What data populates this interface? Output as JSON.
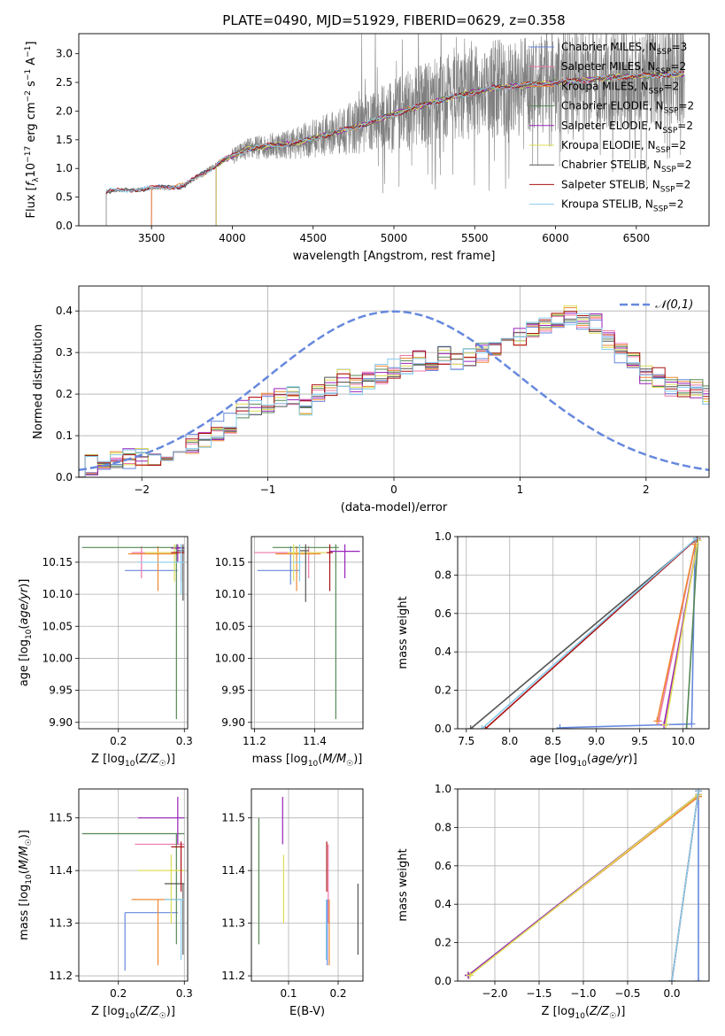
{
  "figure_title": "PLATE=0490, MJD=51929, FIBERID=0629, z=0.358",
  "chart_data": [
    {
      "id": "spectrum",
      "type": "line",
      "title": "PLATE=0490, MJD=51929, FIBERID=0629, z=0.358",
      "xlabel": "wavelength [Angstrom, rest frame]",
      "ylabel": "Flux [f_λ 10^-17 erg cm^-2 s^-1 A^-1]",
      "xlim": [
        3050,
        6950
      ],
      "ylim": [
        0,
        3.35
      ],
      "xticks": [
        3500,
        4000,
        4500,
        5000,
        5500,
        6000,
        6500
      ],
      "yticks": [
        0.0,
        0.5,
        1.0,
        1.5,
        2.0,
        2.5,
        3.0
      ],
      "grid": false,
      "legend_position": "top-right",
      "observed": {
        "color": "#808080",
        "x_start": 3220,
        "x_end": 6800,
        "anchors": [
          [
            3220,
            0.6
          ],
          [
            3500,
            0.65
          ],
          [
            3700,
            0.7
          ],
          [
            3950,
            1.15
          ],
          [
            4100,
            1.35
          ],
          [
            4400,
            1.45
          ],
          [
            4600,
            1.6
          ],
          [
            4800,
            1.75
          ],
          [
            5000,
            1.95
          ],
          [
            5300,
            2.2
          ],
          [
            5600,
            2.4
          ],
          [
            6000,
            2.5
          ],
          [
            6400,
            2.6
          ],
          [
            6800,
            2.65
          ]
        ]
      },
      "series": [
        {
          "name": "Chabrier MILES, N_SSP=3",
          "color": "#6688dd",
          "x_start": 3500
        },
        {
          "name": "Salpeter MILES, N_SSP=2",
          "color": "#ee77aa",
          "x_start": 3500
        },
        {
          "name": "Kroupa MILES, N_SSP=2",
          "color": "#ee8833",
          "x_start": 3500
        },
        {
          "name": "Chabrier ELODIE, N_SSP=2",
          "color": "#558855",
          "x_start": 3900
        },
        {
          "name": "Salpeter ELODIE, N_SSP=2",
          "color": "#9922bb",
          "x_start": 3900
        },
        {
          "name": "Kroupa ELODIE, N_SSP=2",
          "color": "#dddd55",
          "x_start": 3900
        },
        {
          "name": "Chabrier STELIB, N_SSP=2",
          "color": "#555555",
          "x_start": 3220
        },
        {
          "name": "Salpeter STELIB, N_SSP=2",
          "color": "#aa1111",
          "x_start": 3220
        },
        {
          "name": "Kroupa STELIB, N_SSP=2",
          "color": "#88ccee",
          "x_start": 3220
        }
      ]
    },
    {
      "id": "residuals",
      "type": "line",
      "xlabel": "(data-model)/error",
      "ylabel": "Normed distribution",
      "xlim": [
        -2.5,
        2.5
      ],
      "ylim": [
        0,
        0.46
      ],
      "xticks": [
        -2,
        -1,
        0,
        1,
        2
      ],
      "yticks": [
        0.0,
        0.1,
        0.2,
        0.3,
        0.4
      ],
      "grid": true,
      "legend_position": "top-right",
      "legend": "𝒩(0,1)",
      "normal_curve_color": "#6688dd",
      "bin_width": 0.1,
      "base_hist": [
        0.025,
        0.03,
        0.035,
        0.04,
        0.045,
        0.05,
        0.05,
        0.06,
        0.07,
        0.08,
        0.09,
        0.11,
        0.13,
        0.16,
        0.17,
        0.18,
        0.19,
        0.2,
        0.17,
        0.2,
        0.22,
        0.24,
        0.22,
        0.23,
        0.25,
        0.26,
        0.27,
        0.28,
        0.28,
        0.29,
        0.28,
        0.29,
        0.3,
        0.31,
        0.32,
        0.34,
        0.35,
        0.36,
        0.37,
        0.39,
        0.38,
        0.37,
        0.33,
        0.3,
        0.28,
        0.25,
        0.24,
        0.22,
        0.21,
        0.21,
        0.2,
        0.19,
        0.18,
        0.17,
        0.16,
        0.15,
        0.14,
        0.13,
        0.12,
        0.11,
        0.1,
        0.1,
        0.09,
        0.085,
        0.08,
        0.08,
        0.07
      ]
    },
    {
      "id": "age_vs_Z",
      "type": "scatter",
      "xlabel": "Z [log10(Z/Z☉)]",
      "ylabel": "age  [log10(age/yr)]",
      "xlim": [
        0.14,
        0.305
      ],
      "ylim": [
        9.89,
        10.19
      ],
      "xticks": [
        0.2,
        0.3
      ],
      "yticks": [
        9.9,
        9.95,
        10.0,
        10.05,
        10.1,
        10.15
      ],
      "grid": true,
      "points": [
        {
          "color": "#6688dd",
          "x": 0.21,
          "xerr": [
            0.21,
            0.29
          ],
          "y": 10.137,
          "yerr": [
            10.137,
            10.137
          ]
        },
        {
          "color": "#ee77aa",
          "x": 0.235,
          "xerr": [
            0.22,
            0.29
          ],
          "y": 10.165,
          "yerr": [
            10.125,
            10.175
          ]
        },
        {
          "color": "#ee8833",
          "x": 0.26,
          "xerr": [
            0.215,
            0.29
          ],
          "y": 10.163,
          "yerr": [
            10.105,
            10.175
          ]
        },
        {
          "color": "#558855",
          "x": 0.288,
          "xerr": [
            0.145,
            0.3
          ],
          "y": 10.173,
          "yerr": [
            9.905,
            10.178
          ]
        },
        {
          "color": "#9922bb",
          "x": 0.29,
          "xerr": [
            0.28,
            0.3
          ],
          "y": 10.172,
          "yerr": [
            10.15,
            10.178
          ]
        },
        {
          "color": "#dddd55",
          "x": 0.285,
          "xerr": [
            0.24,
            0.3
          ],
          "y": 10.165,
          "yerr": [
            10.12,
            10.178
          ]
        },
        {
          "color": "#555555",
          "x": 0.298,
          "xerr": [
            0.29,
            0.3
          ],
          "y": 10.168,
          "yerr": [
            10.09,
            10.178
          ]
        },
        {
          "color": "#aa1111",
          "x": 0.295,
          "xerr": [
            0.28,
            0.3
          ],
          "y": 10.165,
          "yerr": [
            10.12,
            10.178
          ]
        },
        {
          "color": "#88ccee",
          "x": 0.295,
          "xerr": [
            0.23,
            0.3
          ],
          "y": 10.15,
          "yerr": [
            10.1,
            10.178
          ]
        }
      ]
    },
    {
      "id": "age_vs_mass",
      "type": "scatter",
      "xlabel": "mass [log10(M/M☉)]",
      "ylabel": "",
      "xlim": [
        11.19,
        11.56
      ],
      "ylim": [
        9.89,
        10.19
      ],
      "xticks": [
        11.2,
        11.4
      ],
      "yticks": [
        9.9,
        9.95,
        10.0,
        10.05,
        10.1,
        10.15
      ],
      "grid": true,
      "points": [
        {
          "color": "#6688dd",
          "x": 11.32,
          "xerr": [
            11.21,
            11.35
          ],
          "y": 10.137,
          "yerr": [
            10.115,
            10.175
          ]
        },
        {
          "color": "#ee77aa",
          "x": 11.38,
          "xerr": [
            11.2,
            11.45
          ],
          "y": 10.165,
          "yerr": [
            10.125,
            10.175
          ]
        },
        {
          "color": "#ee8833",
          "x": 11.34,
          "xerr": [
            11.27,
            11.42
          ],
          "y": 10.163,
          "yerr": [
            10.105,
            10.175
          ]
        },
        {
          "color": "#558855",
          "x": 11.47,
          "xerr": [
            11.26,
            11.48
          ],
          "y": 10.173,
          "yerr": [
            9.905,
            10.178
          ]
        },
        {
          "color": "#9922bb",
          "x": 11.5,
          "xerr": [
            11.45,
            11.55
          ],
          "y": 10.167,
          "yerr": [
            10.125,
            10.178
          ]
        },
        {
          "color": "#dddd55",
          "x": 11.33,
          "xerr": [
            11.31,
            11.44
          ],
          "y": 10.165,
          "yerr": [
            10.12,
            10.178
          ]
        },
        {
          "color": "#555555",
          "x": 11.37,
          "xerr": [
            11.35,
            11.38
          ],
          "y": 10.168,
          "yerr": [
            10.088,
            10.178
          ]
        },
        {
          "color": "#aa1111",
          "x": 11.45,
          "xerr": [
            11.44,
            11.46
          ],
          "y": 10.165,
          "yerr": [
            10.105,
            10.178
          ]
        },
        {
          "color": "#88ccee",
          "x": 11.35,
          "xerr": [
            11.33,
            11.36
          ],
          "y": 10.15,
          "yerr": [
            10.12,
            10.178
          ]
        }
      ]
    },
    {
      "id": "massweight_vs_age",
      "type": "line",
      "xlabel": "age  [log10(age/yr)]",
      "ylabel": "mass weight",
      "xlim": [
        7.4,
        10.3
      ],
      "ylim": [
        0,
        1
      ],
      "xticks": [
        7.5,
        8.0,
        8.5,
        9.0,
        9.5,
        10.0
      ],
      "yticks": [
        0.0,
        0.2,
        0.4,
        0.6,
        0.8,
        1.0
      ],
      "grid": true,
      "series": [
        {
          "name": "Chabrier MILES",
          "color": "#6688dd",
          "x": [
            8.58,
            10.1,
            10.14
          ],
          "y": [
            0.005,
            0.025,
            0.97
          ]
        },
        {
          "name": "Salpeter MILES",
          "color": "#ee77aa",
          "x": [
            9.72,
            10.14
          ],
          "y": [
            0.04,
            0.96
          ]
        },
        {
          "name": "Kroupa MILES",
          "color": "#ee8833",
          "x": [
            9.7,
            10.14
          ],
          "y": [
            0.04,
            0.96
          ]
        },
        {
          "name": "Chabrier ELODIE",
          "color": "#558855",
          "x": [
            10.04,
            10.17
          ],
          "y": [
            0.0,
            0.98
          ]
        },
        {
          "name": "Salpeter ELODIE",
          "color": "#9922bb",
          "x": [
            9.78,
            10.17
          ],
          "y": [
            0.02,
            0.98
          ]
        },
        {
          "name": "Kroupa ELODIE",
          "color": "#dddd55",
          "x": [
            9.8,
            10.17
          ],
          "y": [
            0.02,
            0.98
          ]
        },
        {
          "name": "Chabrier STELIB",
          "color": "#555555",
          "x": [
            7.55,
            10.16
          ],
          "y": [
            0.0,
            0.99
          ]
        },
        {
          "name": "Salpeter STELIB",
          "color": "#aa1111",
          "x": [
            7.72,
            10.16
          ],
          "y": [
            0.0,
            0.99
          ]
        },
        {
          "name": "Kroupa STELIB",
          "color": "#88ccee",
          "x": [
            7.68,
            10.15
          ],
          "y": [
            0.0,
            0.99
          ]
        }
      ]
    },
    {
      "id": "mass_vs_Z",
      "type": "scatter",
      "xlabel": "Z [log10(Z/Z☉)]",
      "ylabel": "mass [log10(M/M☉)]",
      "xlim": [
        0.14,
        0.305
      ],
      "ylim": [
        11.19,
        11.555
      ],
      "xticks": [
        0.2,
        0.3
      ],
      "yticks": [
        11.2,
        11.3,
        11.4,
        11.5
      ],
      "grid": true,
      "points": [
        {
          "color": "#6688dd",
          "x": 0.21,
          "xerr": [
            0.21,
            0.29
          ],
          "y": 11.32,
          "yerr": [
            11.21,
            11.32
          ]
        },
        {
          "color": "#ee77aa",
          "x": 0.225,
          "xerr": [
            0.225,
            0.3
          ],
          "y": 11.45,
          "yerr": [
            11.45,
            11.45
          ]
        },
        {
          "color": "#ee8833",
          "x": 0.26,
          "xerr": [
            0.22,
            0.3
          ],
          "y": 11.345,
          "yerr": [
            11.22,
            11.345
          ]
        },
        {
          "color": "#558855",
          "x": 0.288,
          "xerr": [
            0.145,
            0.3
          ],
          "y": 11.47,
          "yerr": [
            11.26,
            11.47
          ]
        },
        {
          "color": "#9922bb",
          "x": 0.29,
          "xerr": [
            0.23,
            0.3
          ],
          "y": 11.5,
          "yerr": [
            11.45,
            11.54
          ]
        },
        {
          "color": "#dddd55",
          "x": 0.28,
          "xerr": [
            0.23,
            0.3
          ],
          "y": 11.4,
          "yerr": [
            11.3,
            11.43
          ]
        },
        {
          "color": "#555555",
          "x": 0.298,
          "xerr": [
            0.27,
            0.3
          ],
          "y": 11.375,
          "yerr": [
            11.24,
            11.375
          ]
        },
        {
          "color": "#aa1111",
          "x": 0.295,
          "xerr": [
            0.28,
            0.3
          ],
          "y": 11.445,
          "yerr": [
            11.36,
            11.455
          ]
        },
        {
          "color": "#88ccee",
          "x": 0.295,
          "xerr": [
            0.27,
            0.3
          ],
          "y": 11.345,
          "yerr": [
            11.23,
            11.345
          ]
        }
      ]
    },
    {
      "id": "mass_vs_EBV",
      "type": "scatter",
      "xlabel": "E(B-V)",
      "ylabel": "",
      "xlim": [
        0.025,
        0.25
      ],
      "ylim": [
        11.19,
        11.555
      ],
      "xticks": [
        0.1,
        0.2
      ],
      "yticks": [
        11.2,
        11.3,
        11.4,
        11.5
      ],
      "grid": true,
      "points": [
        {
          "color": "#6688dd",
          "x": 0.178,
          "y": 11.32,
          "yerr": [
            11.22,
            11.345
          ]
        },
        {
          "color": "#ee77aa",
          "x": 0.18,
          "y": 11.45,
          "yerr": [
            11.3,
            11.45
          ]
        },
        {
          "color": "#ee8833",
          "x": 0.182,
          "y": 11.345,
          "yerr": [
            11.22,
            11.345
          ]
        },
        {
          "color": "#558855",
          "x": 0.04,
          "y": 11.47,
          "yerr": [
            11.26,
            11.5
          ]
        },
        {
          "color": "#9922bb",
          "x": 0.088,
          "y": 11.5,
          "yerr": [
            11.45,
            11.54
          ]
        },
        {
          "color": "#dddd55",
          "x": 0.09,
          "y": 11.4,
          "yerr": [
            11.3,
            11.43
          ]
        },
        {
          "color": "#555555",
          "x": 0.24,
          "y": 11.375,
          "yerr": [
            11.24,
            11.375
          ]
        },
        {
          "color": "#aa1111",
          "x": 0.177,
          "y": 11.445,
          "yerr": [
            11.36,
            11.455
          ]
        },
        {
          "color": "#88ccee",
          "x": 0.176,
          "y": 11.345,
          "yerr": [
            11.23,
            11.345
          ]
        }
      ]
    },
    {
      "id": "massweight_vs_Z",
      "type": "line",
      "xlabel": "Z [log10(Z/Z☉)]",
      "ylabel": "mass weight",
      "xlim": [
        -2.42,
        0.42
      ],
      "ylim": [
        0,
        1
      ],
      "xticks": [
        -2.0,
        -1.5,
        -1.0,
        -0.5,
        0.0
      ],
      "yticks": [
        0.0,
        0.2,
        0.4,
        0.6,
        0.8,
        1.0
      ],
      "grid": true,
      "series": [
        {
          "name": "Chabrier MILES",
          "color": "#6688dd",
          "x": [
            0.3,
            0.3
          ],
          "y": [
            0.0,
            0.97
          ]
        },
        {
          "name": "Salpeter MILES",
          "color": "#ee77aa",
          "x": [
            -2.3,
            0.3
          ],
          "y": [
            0.03,
            0.96
          ]
        },
        {
          "name": "Kroupa MILES",
          "color": "#ee8833",
          "x": [
            -2.3,
            0.3
          ],
          "y": [
            0.03,
            0.96
          ]
        },
        {
          "name": "Chabrier ELODIE",
          "color": "#558855",
          "x": [
            -2.3,
            0.3
          ],
          "y": [
            0.03,
            0.97
          ]
        },
        {
          "name": "Salpeter ELODIE",
          "color": "#9922bb",
          "x": [
            -2.3,
            0.3
          ],
          "y": [
            0.03,
            0.97
          ]
        },
        {
          "name": "Kroupa ELODIE",
          "color": "#dddd55",
          "x": [
            -2.28,
            0.3
          ],
          "y": [
            0.03,
            0.97
          ]
        },
        {
          "name": "Chabrier STELIB",
          "color": "#555555",
          "x": [
            0.0,
            0.3
          ],
          "y": [
            0.0,
            0.99
          ]
        },
        {
          "name": "Salpeter STELIB",
          "color": "#aa1111",
          "x": [
            0.0,
            0.3
          ],
          "y": [
            0.0,
            0.99
          ]
        },
        {
          "name": "Kroupa STELIB",
          "color": "#88ccee",
          "x": [
            0.0,
            0.3
          ],
          "y": [
            0.0,
            0.99
          ]
        }
      ]
    }
  ]
}
